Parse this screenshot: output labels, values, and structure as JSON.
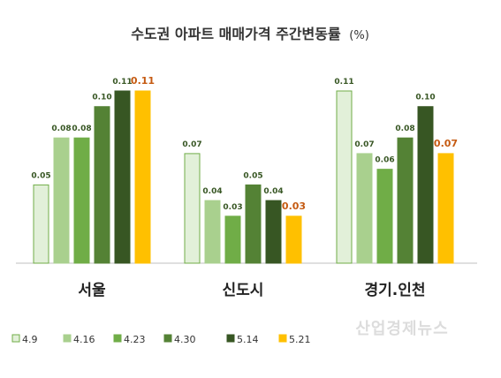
{
  "chart_data": {
    "type": "bar",
    "title": "수도권 아파트 매매가격 주간변동률",
    "unit": "(%)",
    "categories": [
      "서울",
      "신도시",
      "경기.인천"
    ],
    "series": [
      {
        "name": "4.9",
        "color": "#e2f0d9",
        "stroke": "#70ad47",
        "values": [
          0.05,
          0.07,
          0.11
        ]
      },
      {
        "name": "4.16",
        "color": "#a9d08e",
        "stroke": "#a9d08e",
        "values": [
          0.08,
          0.04,
          0.07
        ]
      },
      {
        "name": "4.23",
        "color": "#70ad47",
        "stroke": "#70ad47",
        "values": [
          0.08,
          0.03,
          0.06
        ]
      },
      {
        "name": "4.30",
        "color": "#548235",
        "stroke": "#548235",
        "values": [
          0.1,
          0.05,
          0.08
        ]
      },
      {
        "name": "5.14",
        "color": "#375623",
        "stroke": "#375623",
        "values": [
          0.11,
          0.04,
          0.1
        ]
      },
      {
        "name": "5.21",
        "color": "#ffc000",
        "stroke": "#ffc000",
        "values": [
          0.11,
          0.03,
          0.07
        ]
      }
    ],
    "ylim": [
      0,
      0.11
    ],
    "highlight_label_color": "#c55a11",
    "label_color": "#375623",
    "grid": false,
    "legend_position": "bottom"
  },
  "watermark": "산업경제뉴스"
}
